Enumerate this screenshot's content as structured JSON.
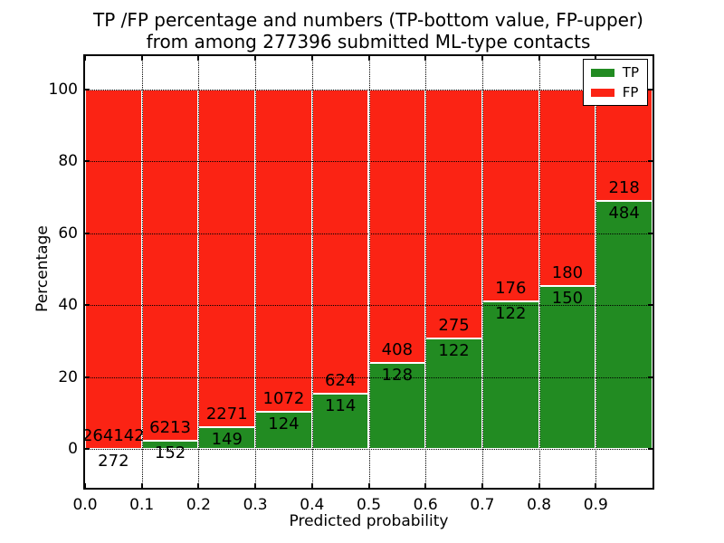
{
  "chart_data": {
    "type": "bar",
    "stacked": true,
    "title": "TP /FP percentage and numbers (TP-bottom value, FP-upper)\nfrom among 277396 submitted ML-type contacts",
    "xlabel": "Predicted probability",
    "ylabel": "Percentage",
    "x_tick_labels": [
      "0.0",
      "0.1",
      "0.2",
      "0.3",
      "0.4",
      "0.5",
      "0.6",
      "0.7",
      "0.8",
      "0.9"
    ],
    "y_tick_labels": [
      "0",
      "20",
      "40",
      "60",
      "80",
      "100"
    ],
    "y_ticks": [
      0,
      20,
      40,
      60,
      80,
      100
    ],
    "xlim": [
      0.0,
      1.0
    ],
    "ylim": [
      -10.9,
      109.4
    ],
    "grid": "dotted black, on",
    "legend_position": "upper right",
    "bar_display": "each 0.1-wide bin normalized to 100%, TP green on bottom, FP red on top, raw counts annotated (FP above TP)",
    "series": [
      {
        "name": "TP",
        "color": "#228b22"
      },
      {
        "name": "FP",
        "color": "#fb2314"
      }
    ],
    "bins": [
      {
        "range": [
          0.0,
          0.1
        ],
        "tp": 272,
        "fp": 264142
      },
      {
        "range": [
          0.1,
          0.2
        ],
        "tp": 152,
        "fp": 6213
      },
      {
        "range": [
          0.2,
          0.3
        ],
        "tp": 149,
        "fp": 2271
      },
      {
        "range": [
          0.3,
          0.4
        ],
        "tp": 124,
        "fp": 1072
      },
      {
        "range": [
          0.4,
          0.5
        ],
        "tp": 114,
        "fp": 624
      },
      {
        "range": [
          0.5,
          0.6
        ],
        "tp": 128,
        "fp": 408
      },
      {
        "range": [
          0.6,
          0.7
        ],
        "tp": 122,
        "fp": 275
      },
      {
        "range": [
          0.7,
          0.8
        ],
        "tp": 122,
        "fp": 176
      },
      {
        "range": [
          0.8,
          0.9
        ],
        "tp": 150,
        "fp": 180
      },
      {
        "range": [
          0.9,
          1.0
        ],
        "tp": 484,
        "fp": 218
      }
    ]
  }
}
